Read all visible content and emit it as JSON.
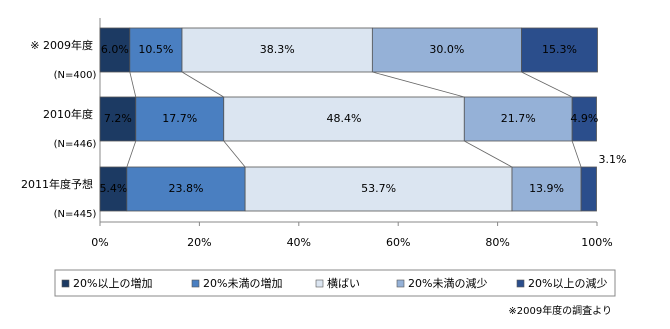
{
  "chart_data": {
    "type": "stacked-bar-100",
    "categories": [
      "※ 2009年度",
      "2010年度",
      "2011年度予想"
    ],
    "category_notes": [
      "(N=400)",
      "(N=446)",
      "(N=445)"
    ],
    "series": [
      {
        "name": "20%以上の増加",
        "color": "#1c3a63",
        "values": [
          6.0,
          7.2,
          5.4
        ],
        "value_labels": [
          "6.0%",
          "7.2%",
          "5.4%"
        ]
      },
      {
        "name": "20%未満の増加",
        "color": "#4a7fc1",
        "values": [
          10.5,
          17.7,
          23.8
        ],
        "value_labels": [
          "10.5%",
          "17.7%",
          "23.8%"
        ]
      },
      {
        "name": "横ばい",
        "color": "#dbe5f1",
        "values": [
          38.3,
          48.4,
          53.7
        ],
        "value_labels": [
          "38.3%",
          "48.4%",
          "53.7%"
        ]
      },
      {
        "name": "20%未満の減少",
        "color": "#95b1d7",
        "values": [
          30.0,
          21.7,
          13.9
        ],
        "value_labels": [
          "30.0%",
          "21.7%",
          "13.9%"
        ]
      },
      {
        "name": "20%以上の減少",
        "color": "#2b4e8c",
        "values": [
          15.3,
          4.9,
          3.1
        ],
        "value_labels": [
          "15.3%",
          "4.9%",
          "3.1%"
        ]
      }
    ],
    "xlim": [
      0,
      100
    ],
    "xticks": [
      {
        "value": 0,
        "label": "0%"
      },
      {
        "value": 20,
        "label": "20%"
      },
      {
        "value": 40,
        "label": "40%"
      },
      {
        "value": 60,
        "label": "60%"
      },
      {
        "value": 80,
        "label": "80%"
      },
      {
        "value": 100,
        "label": "100%"
      }
    ],
    "footnote": "※2009年度の調査より"
  }
}
